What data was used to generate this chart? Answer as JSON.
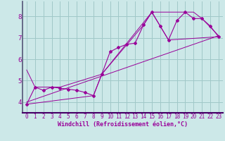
{
  "title": "",
  "xlabel": "Windchill (Refroidissement éolien,°C)",
  "bg_color": "#cce8e8",
  "grid_color": "#a0c8c8",
  "line_color": "#990099",
  "spine_color": "#555577",
  "xlim": [
    -0.5,
    23.5
  ],
  "ylim": [
    3.5,
    8.7
  ],
  "yticks": [
    4,
    5,
    6,
    7,
    8
  ],
  "xticks": [
    0,
    1,
    2,
    3,
    4,
    5,
    6,
    7,
    8,
    9,
    10,
    11,
    12,
    13,
    14,
    15,
    16,
    17,
    18,
    19,
    20,
    21,
    22,
    23
  ],
  "data_x": [
    0,
    1,
    2,
    3,
    4,
    5,
    6,
    7,
    8,
    9,
    10,
    11,
    12,
    13,
    14,
    15,
    16,
    17,
    18,
    19,
    20,
    21,
    22,
    23
  ],
  "data_y": [
    3.9,
    4.7,
    4.55,
    4.7,
    4.65,
    4.6,
    4.55,
    4.45,
    4.3,
    5.3,
    6.35,
    6.55,
    6.7,
    6.75,
    7.6,
    8.2,
    7.55,
    6.9,
    7.8,
    8.2,
    7.9,
    7.9,
    7.55,
    7.05
  ],
  "trend_x": [
    0,
    23
  ],
  "trend_y": [
    4.0,
    7.1
  ],
  "envelope_upper_x": [
    0,
    1,
    4,
    9,
    14,
    15,
    19,
    20,
    21,
    23
  ],
  "envelope_upper_y": [
    5.5,
    4.7,
    4.7,
    5.3,
    7.6,
    8.2,
    8.2,
    8.2,
    7.9,
    7.1
  ],
  "envelope_lower_x": [
    0,
    8,
    9,
    15,
    17,
    23
  ],
  "envelope_lower_y": [
    3.9,
    4.3,
    5.3,
    8.2,
    6.9,
    7.05
  ],
  "xlabel_fontsize": 6.0,
  "tick_fontsize": 5.5,
  "ytick_fontsize": 6.5
}
